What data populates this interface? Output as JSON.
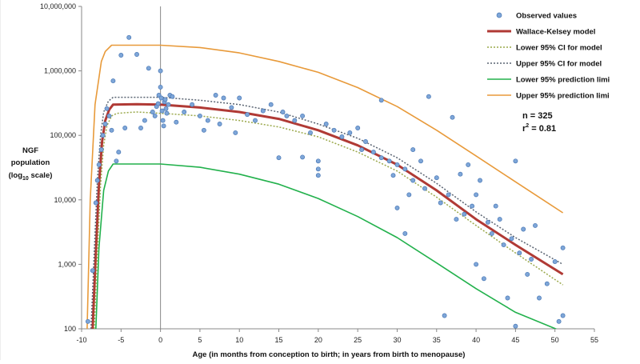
{
  "chart_data": {
    "type": "scatter",
    "xlabel": "Age (in months from conception to birth; in years from birth to menopause)",
    "ylabel_lines": [
      "NGF",
      "population"
    ],
    "ylabel_log_prefix": "(log",
    "ylabel_log_sub": "10",
    "ylabel_log_suffix": " scale)",
    "x_ticks": [
      -10,
      -5,
      0,
      5,
      10,
      15,
      20,
      25,
      30,
      35,
      40,
      45,
      50,
      55
    ],
    "y_ticks": [
      {
        "value": 100,
        "label": "100"
      },
      {
        "value": 1000,
        "label": "1,000"
      },
      {
        "value": 10000,
        "label": "10,000"
      },
      {
        "value": 100000,
        "label": "100,000"
      },
      {
        "value": 1000000,
        "label": "1,000,000"
      },
      {
        "value": 10000000,
        "label": "10,000,000"
      }
    ],
    "xlim": [
      -10,
      55
    ],
    "ylim": [
      100,
      10000000
    ],
    "y_scale": "log",
    "grid": false,
    "legend_position": "top-right",
    "stats": {
      "n_text": "n = 325",
      "r2_prefix": "r",
      "r2_exp": "2",
      "r2_suffix": " = 0.81"
    },
    "series": [
      {
        "name": "Observed values",
        "kind": "points",
        "color": "#7ea6d8",
        "points": [
          [
            -9.2,
            130
          ],
          [
            -8.6,
            800
          ],
          [
            -8.2,
            9000
          ],
          [
            -8.0,
            20000
          ],
          [
            -7.8,
            35000
          ],
          [
            -7.5,
            60000
          ],
          [
            -7.3,
            100000
          ],
          [
            -7.0,
            150000
          ],
          [
            -6.8,
            260000
          ],
          [
            -6.5,
            200000
          ],
          [
            -6.2,
            120000
          ],
          [
            -6.0,
            700000
          ],
          [
            -5.6,
            40000
          ],
          [
            -5.3,
            55000
          ],
          [
            -5.0,
            1750000
          ],
          [
            -4.5,
            130000
          ],
          [
            -4.0,
            3300000
          ],
          [
            -3.0,
            1800000
          ],
          [
            -2.5,
            130000
          ],
          [
            -2.0,
            170000
          ],
          [
            -1.5,
            1100000
          ],
          [
            -1.0,
            230000
          ],
          [
            -0.7,
            200000
          ],
          [
            -0.5,
            280000
          ],
          [
            -0.3,
            310000
          ],
          [
            -0.2,
            420000
          ],
          [
            0.0,
            1000000
          ],
          [
            0.0,
            560000
          ],
          [
            0.1,
            380000
          ],
          [
            0.2,
            240000
          ],
          [
            0.3,
            170000
          ],
          [
            0.4,
            140000
          ],
          [
            0.5,
            330000
          ],
          [
            0.6,
            360000
          ],
          [
            0.7,
            260000
          ],
          [
            0.8,
            220000
          ],
          [
            1.0,
            300000
          ],
          [
            1.2,
            420000
          ],
          [
            1.5,
            400000
          ],
          [
            2.0,
            160000
          ],
          [
            3.0,
            230000
          ],
          [
            4.0,
            300000
          ],
          [
            5.0,
            200000
          ],
          [
            5.5,
            120000
          ],
          [
            6.0,
            170000
          ],
          [
            7.0,
            420000
          ],
          [
            7.5,
            150000
          ],
          [
            8.0,
            380000
          ],
          [
            9.0,
            270000
          ],
          [
            9.5,
            110000
          ],
          [
            10.0,
            380000
          ],
          [
            11.0,
            210000
          ],
          [
            12.0,
            170000
          ],
          [
            13.0,
            240000
          ],
          [
            14.0,
            300000
          ],
          [
            15.0,
            45000
          ],
          [
            15.5,
            230000
          ],
          [
            16.0,
            200000
          ],
          [
            17.0,
            170000
          ],
          [
            18.0,
            200000
          ],
          [
            18.0,
            46000
          ],
          [
            19.0,
            110000
          ],
          [
            20.0,
            40000
          ],
          [
            20.0,
            30000
          ],
          [
            20.0,
            24000
          ],
          [
            21.0,
            150000
          ],
          [
            22.0,
            120000
          ],
          [
            23.0,
            95000
          ],
          [
            24.0,
            110000
          ],
          [
            25.0,
            130000
          ],
          [
            25.5,
            60000
          ],
          [
            26.0,
            80000
          ],
          [
            27.0,
            55000
          ],
          [
            28.0,
            45000
          ],
          [
            28.0,
            350000
          ],
          [
            29.0,
            40000
          ],
          [
            29.5,
            24000
          ],
          [
            30.0,
            35000
          ],
          [
            30.0,
            7500
          ],
          [
            31.0,
            30000
          ],
          [
            31.0,
            3000
          ],
          [
            31.5,
            12000
          ],
          [
            32.0,
            20000
          ],
          [
            32.0,
            60000
          ],
          [
            33.0,
            40000
          ],
          [
            33.5,
            15000
          ],
          [
            34.0,
            400000
          ],
          [
            35.0,
            22000
          ],
          [
            35.5,
            9000
          ],
          [
            36.0,
            160
          ],
          [
            36.5,
            12000
          ],
          [
            37.0,
            190000
          ],
          [
            37.5,
            5000
          ],
          [
            38.0,
            25000
          ],
          [
            38.5,
            6000
          ],
          [
            39.0,
            35000
          ],
          [
            39.5,
            8000
          ],
          [
            40.0,
            12000
          ],
          [
            40.0,
            1000
          ],
          [
            40.5,
            20000
          ],
          [
            41.0,
            600
          ],
          [
            41.5,
            4500
          ],
          [
            42.0,
            3000
          ],
          [
            42.5,
            8000
          ],
          [
            43.0,
            5000
          ],
          [
            43.5,
            2000
          ],
          [
            44.0,
            300
          ],
          [
            44.5,
            2500
          ],
          [
            45.0,
            40000
          ],
          [
            45.0,
            110
          ],
          [
            45.5,
            1500
          ],
          [
            46.0,
            3500
          ],
          [
            46.5,
            700
          ],
          [
            47.0,
            1200
          ],
          [
            47.5,
            4000
          ],
          [
            48.0,
            300
          ],
          [
            49.0,
            500
          ],
          [
            50.0,
            1100
          ],
          [
            50.5,
            130
          ],
          [
            51.0,
            1800
          ],
          [
            51.0,
            160
          ]
        ]
      },
      {
        "name": "Wallace-Kelsey model",
        "kind": "line",
        "color": "#b03a35",
        "dash": "",
        "width": 3,
        "points": [
          [
            -8.6,
            100
          ],
          [
            -8.2,
            1500
          ],
          [
            -7.8,
            17000
          ],
          [
            -7.4,
            80000
          ],
          [
            -7.0,
            170000
          ],
          [
            -6.5,
            250000
          ],
          [
            -6.0,
            300000
          ],
          [
            -3.0,
            305000
          ],
          [
            0.0,
            300000
          ],
          [
            5.0,
            270000
          ],
          [
            10.0,
            230000
          ],
          [
            15.0,
            180000
          ],
          [
            20.0,
            120000
          ],
          [
            25.0,
            70000
          ],
          [
            30.0,
            35000
          ],
          [
            35.0,
            14000
          ],
          [
            40.0,
            5000
          ],
          [
            45.0,
            2000
          ],
          [
            51.0,
            700
          ]
        ]
      },
      {
        "name": "Lower 95% CI for model",
        "kind": "line",
        "color": "#9aa84a",
        "dash": "2,2",
        "width": 1.5,
        "points": [
          [
            -8.4,
            100
          ],
          [
            -8.0,
            1500
          ],
          [
            -7.6,
            17000
          ],
          [
            -7.2,
            70000
          ],
          [
            -6.8,
            140000
          ],
          [
            -6.2,
            200000
          ],
          [
            -5.5,
            220000
          ],
          [
            -3.0,
            230000
          ],
          [
            0.0,
            220000
          ],
          [
            5.0,
            200000
          ],
          [
            10.0,
            170000
          ],
          [
            15.0,
            135000
          ],
          [
            20.0,
            95000
          ],
          [
            25.0,
            55000
          ],
          [
            30.0,
            28000
          ],
          [
            35.0,
            11000
          ],
          [
            40.0,
            4000
          ],
          [
            45.0,
            1500
          ],
          [
            51.0,
            480
          ]
        ]
      },
      {
        "name": "Upper 95% CI for model",
        "kind": "line",
        "color": "#5a6472",
        "dash": "2,2",
        "width": 1.5,
        "points": [
          [
            -8.8,
            100
          ],
          [
            -8.4,
            1500
          ],
          [
            -8.0,
            20000
          ],
          [
            -7.6,
            100000
          ],
          [
            -7.2,
            230000
          ],
          [
            -6.6,
            340000
          ],
          [
            -6.0,
            390000
          ],
          [
            -3.0,
            390000
          ],
          [
            0.0,
            390000
          ],
          [
            5.0,
            350000
          ],
          [
            10.0,
            300000
          ],
          [
            15.0,
            230000
          ],
          [
            20.0,
            150000
          ],
          [
            25.0,
            90000
          ],
          [
            30.0,
            45000
          ],
          [
            35.0,
            18000
          ],
          [
            40.0,
            6500
          ],
          [
            45.0,
            2600
          ],
          [
            51.0,
            1000
          ]
        ]
      },
      {
        "name": "Lower 95% prediction limit",
        "legend_label": "Lower 95% prediction limi",
        "kind": "line",
        "color": "#22b14c",
        "dash": "",
        "width": 1.6,
        "points": [
          [
            -8.2,
            100
          ],
          [
            -7.8,
            1800
          ],
          [
            -7.2,
            14000
          ],
          [
            -6.6,
            28000
          ],
          [
            -6.0,
            36000
          ],
          [
            -3.0,
            36000
          ],
          [
            0.0,
            36000
          ],
          [
            5.0,
            32000
          ],
          [
            10.0,
            25000
          ],
          [
            15.0,
            17500
          ],
          [
            20.0,
            10500
          ],
          [
            25.0,
            5500
          ],
          [
            30.0,
            2600
          ],
          [
            35.0,
            1050
          ],
          [
            40.0,
            420
          ],
          [
            45.0,
            180
          ],
          [
            51.0,
            90
          ]
        ]
      },
      {
        "name": "Upper 95% prediction limit",
        "legend_label": "Upper 95% prediction limi",
        "kind": "line",
        "color": "#e89a3a",
        "dash": "",
        "width": 1.6,
        "points": [
          [
            -9.3,
            100
          ],
          [
            -8.9,
            10000
          ],
          [
            -8.3,
            300000
          ],
          [
            -7.5,
            1400000
          ],
          [
            -7.0,
            2000000
          ],
          [
            -6.2,
            2500000
          ],
          [
            -3.0,
            2500000
          ],
          [
            0.0,
            2500000
          ],
          [
            5.0,
            2300000
          ],
          [
            10.0,
            1900000
          ],
          [
            15.0,
            1400000
          ],
          [
            20.0,
            950000
          ],
          [
            25.0,
            550000
          ],
          [
            30.0,
            280000
          ],
          [
            35.0,
            120000
          ],
          [
            40.0,
            48000
          ],
          [
            45.0,
            19000
          ],
          [
            51.0,
            6300
          ]
        ]
      }
    ]
  }
}
